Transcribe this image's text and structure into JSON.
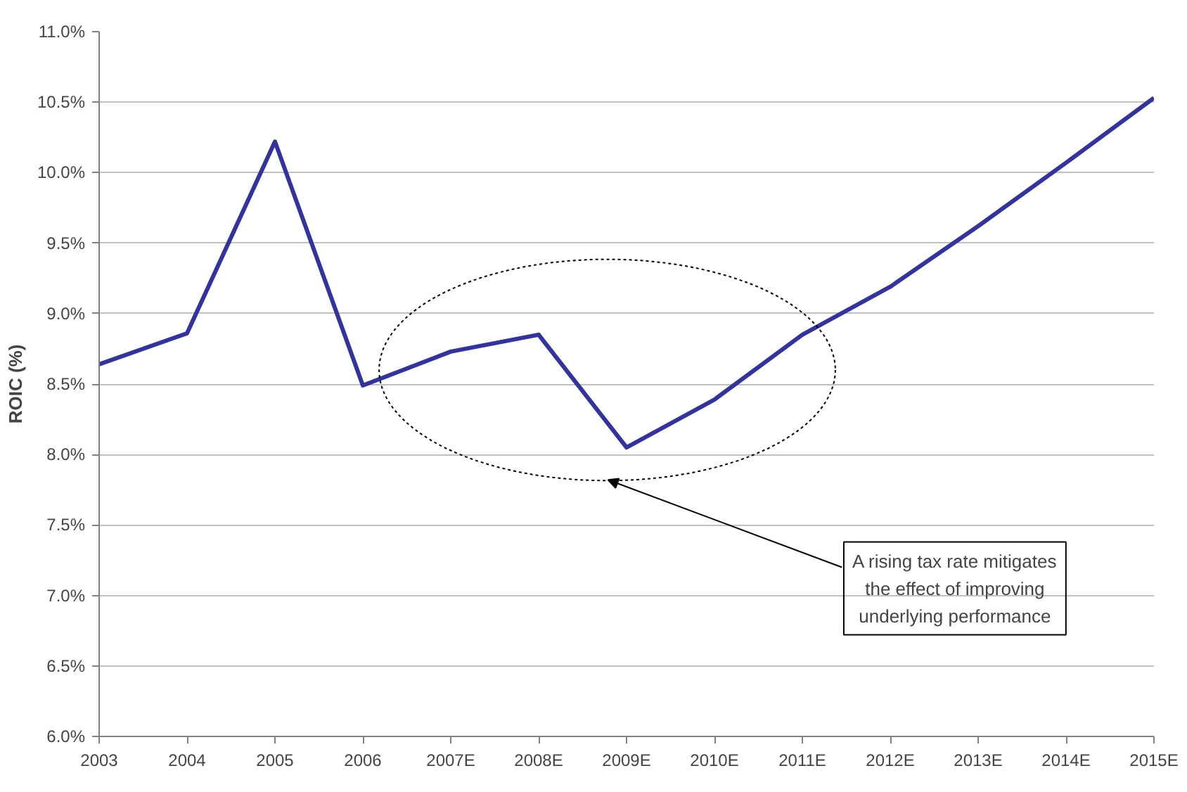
{
  "chart_data": {
    "type": "line",
    "categories": [
      "2003",
      "2004",
      "2005",
      "2006",
      "2007E",
      "2008E",
      "2009E",
      "2010E",
      "2011E",
      "2012E",
      "2013E",
      "2014E",
      "2015E"
    ],
    "series": [
      {
        "color": "#333399",
        "values": [
          8.64,
          8.86,
          10.22,
          8.49,
          8.73,
          8.85,
          8.05,
          8.39,
          8.85,
          9.19,
          9.62,
          10.07,
          10.53
        ]
      }
    ],
    "ylabel": "ROIC (%)",
    "ylim": [
      6.0,
      11.0
    ],
    "yticks": [
      {
        "value": 6.0,
        "label": "6.0%"
      },
      {
        "value": 6.5,
        "label": "6.5%"
      },
      {
        "value": 7.0,
        "label": "7.0%"
      },
      {
        "value": 7.5,
        "label": "7.5%"
      },
      {
        "value": 8.0,
        "label": "8.0%"
      },
      {
        "value": 8.5,
        "label": "8.5%"
      },
      {
        "value": 9.0,
        "label": "9.0%"
      },
      {
        "value": 9.5,
        "label": "9.5%"
      },
      {
        "value": 10.0,
        "label": "10.0%"
      },
      {
        "value": 10.5,
        "label": "10.5%"
      },
      {
        "value": 11.0,
        "label": "11.0%"
      }
    ],
    "grid": "y",
    "marker": "none",
    "line_style": "solid",
    "annotations": [
      "A rising tax rate mitigates the effect of improving underlying performance"
    ]
  }
}
